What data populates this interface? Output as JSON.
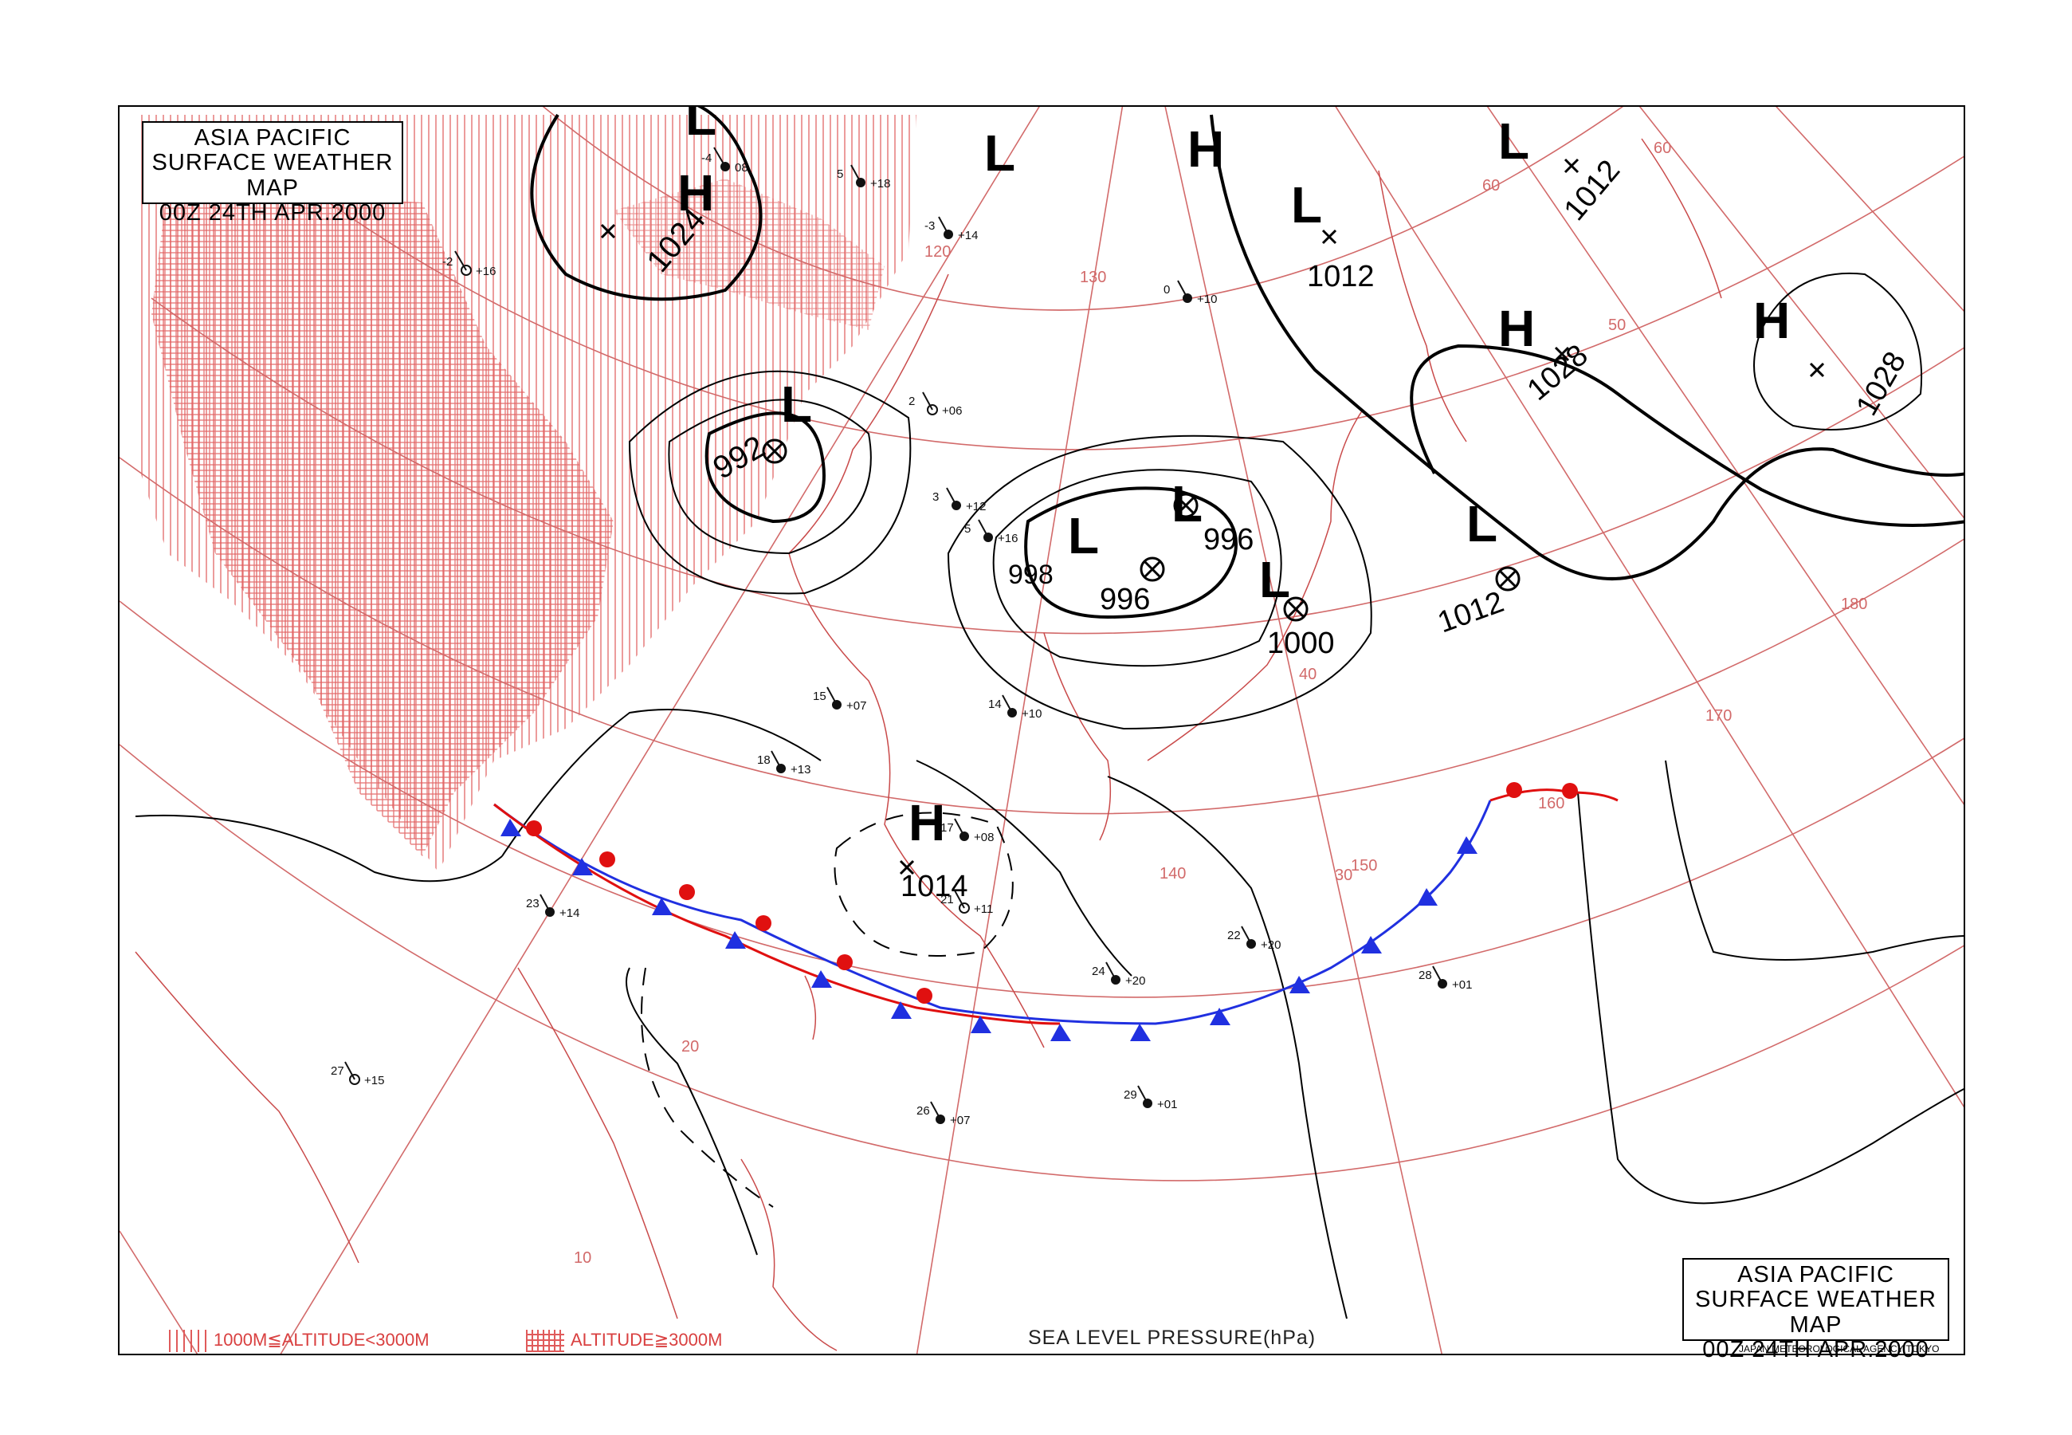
{
  "title": {
    "line1": "ASIA PACIFIC",
    "line2": "SURFACE WEATHER MAP",
    "line3": "00Z 24TH APR.2000"
  },
  "legend": {
    "mid_altitude": "1000M≦ALTITUDE<3000M",
    "high_altitude": "ALTITUDE≧3000M"
  },
  "caption": "SEA LEVEL PRESSURE(hPa)",
  "agency": "JAPAN METEOROLOGICAL AGENCY TOKYO",
  "colors": {
    "isobar": "#000000",
    "graticule": "#d26a6a",
    "coastline": "#c94a4a",
    "terrain_hatch": "#e05a5a",
    "cold_front": "#2030e0",
    "warm_front": "#e01010"
  },
  "pressure_systems": [
    {
      "type": "H",
      "label": "H",
      "value": "1024"
    },
    {
      "type": "L",
      "label": "L",
      "value": "992"
    },
    {
      "type": "L",
      "label": "L",
      "value": "1012"
    },
    {
      "type": "L",
      "label": "L",
      "value": "1012"
    },
    {
      "type": "H",
      "label": "H",
      "value": "1028"
    },
    {
      "type": "H",
      "label": "H",
      "value": "1028"
    },
    {
      "type": "L",
      "label": "L",
      "value": "996"
    },
    {
      "type": "L",
      "label": "L",
      "value": "996"
    },
    {
      "type": "L",
      "label": "L",
      "value": "1000"
    },
    {
      "type": "L",
      "label": "L",
      "value": "1012"
    },
    {
      "type": "H",
      "label": "H",
      "value": "1014"
    },
    {
      "type": "H",
      "label": "H",
      "value": ""
    },
    {
      "type": "L",
      "label": "L",
      "value": ""
    },
    {
      "type": "L",
      "label": "L",
      "value": ""
    }
  ],
  "isobar_labels": [
    "998",
    "1012"
  ],
  "graticule_labels": {
    "longitudes": [
      "60",
      "120",
      "130",
      "140",
      "150",
      "160",
      "170",
      "180"
    ],
    "latitudes": [
      "10",
      "20",
      "30",
      "40",
      "50",
      "60"
    ]
  },
  "station_samples": [
    {
      "temp": "-4",
      "pressure": "08"
    },
    {
      "temp": "-2",
      "pressure": "+16"
    },
    {
      "temp": "5",
      "pressure": "+18"
    },
    {
      "temp": "-3",
      "pressure": "+14"
    },
    {
      "temp": "0",
      "pressure": "+10"
    },
    {
      "temp": "2",
      "pressure": "+06"
    },
    {
      "temp": "3",
      "pressure": "+12"
    },
    {
      "temp": "5",
      "pressure": "+16"
    },
    {
      "temp": "14",
      "pressure": "+10"
    },
    {
      "temp": "15",
      "pressure": "+07"
    },
    {
      "temp": "18",
      "pressure": "+13"
    },
    {
      "temp": "17",
      "pressure": "+08"
    },
    {
      "temp": "21",
      "pressure": "+11"
    },
    {
      "temp": "22",
      "pressure": "+20"
    },
    {
      "temp": "23",
      "pressure": "+14"
    },
    {
      "temp": "24",
      "pressure": "+20"
    },
    {
      "temp": "26",
      "pressure": "+07"
    },
    {
      "temp": "27",
      "pressure": "+15"
    },
    {
      "temp": "28",
      "pressure": "+01"
    },
    {
      "temp": "29",
      "pressure": "+01"
    }
  ]
}
